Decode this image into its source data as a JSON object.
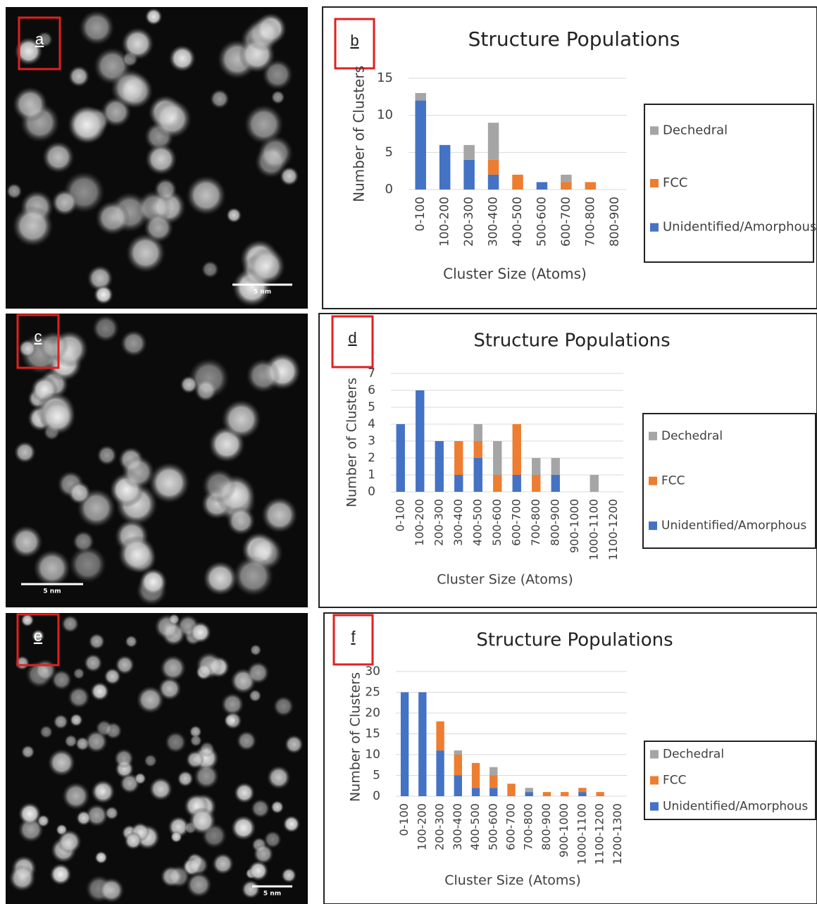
{
  "images": [
    {
      "label": "a",
      "scale_bar": "5 nm"
    },
    {
      "label": "c",
      "scale_bar": "5 nm"
    },
    {
      "label": "e",
      "scale_bar": "5 nm"
    }
  ],
  "chart_data": [
    {
      "type": "bar",
      "stacked": true,
      "panel_label": "b",
      "title": "Structure Populations",
      "x_label": "Cluster Size (Atoms)",
      "y_label": "Number of Clusters",
      "categories": [
        "0-100",
        "100-200",
        "200-300",
        "300-400",
        "400-500",
        "500-600",
        "600-700",
        "700-800",
        "800-900"
      ],
      "series": [
        {
          "name": "Dechedral",
          "color": "#a5a5a5",
          "values": [
            1,
            0,
            2,
            5,
            0,
            0,
            1,
            0,
            0
          ]
        },
        {
          "name": "FCC",
          "color": "#ed7d31",
          "values": [
            0,
            0,
            0,
            2,
            2,
            0,
            1,
            1,
            0
          ]
        },
        {
          "name": "Unidentified/Amorphous",
          "color": "#4472c4",
          "values": [
            12,
            6,
            4,
            2,
            0,
            1,
            0,
            0,
            0
          ]
        }
      ],
      "ylim": [
        0,
        15
      ],
      "yticks": [
        0,
        5,
        10,
        15
      ],
      "grid": true,
      "legend": "right"
    },
    {
      "type": "bar",
      "stacked": true,
      "panel_label": "d",
      "title": "Structure Populations",
      "x_label": "Cluster Size (Atoms)",
      "y_label": "Number of Clusters",
      "categories": [
        "0-100",
        "100-200",
        "200-300",
        "300-400",
        "400-500",
        "500-600",
        "600-700",
        "700-800",
        "800-900",
        "900-1000",
        "1000-1100",
        "1100-1200"
      ],
      "series": [
        {
          "name": "Dechedral",
          "color": "#a5a5a5",
          "values": [
            0,
            0,
            0,
            0,
            1,
            2,
            0,
            1,
            1,
            0,
            1,
            0
          ]
        },
        {
          "name": "FCC",
          "color": "#ed7d31",
          "values": [
            0,
            0,
            0,
            2,
            1,
            1,
            3,
            1,
            0,
            0,
            0,
            0
          ]
        },
        {
          "name": "Unidentified/Amorphous",
          "color": "#4472c4",
          "values": [
            4,
            6,
            3,
            1,
            2,
            0,
            1,
            0,
            1,
            0,
            0,
            0
          ]
        }
      ],
      "ylim": [
        0,
        7
      ],
      "yticks": [
        0,
        1,
        2,
        3,
        4,
        5,
        6,
        7
      ],
      "grid": true,
      "legend": "right"
    },
    {
      "type": "bar",
      "stacked": true,
      "panel_label": "f",
      "title": "Structure Populations",
      "x_label": "Cluster Size (Atoms)",
      "y_label": "Number of Clusters",
      "categories": [
        "0-100",
        "100-200",
        "200-300",
        "300-400",
        "400-500",
        "500-600",
        "600-700",
        "700-800",
        "800-900",
        "900-1000",
        "1000-1100",
        "1100-1200",
        "1200-1300"
      ],
      "series": [
        {
          "name": "Dechedral",
          "color": "#a5a5a5",
          "values": [
            0,
            0,
            0,
            1,
            0,
            2,
            0,
            1,
            0,
            0,
            0,
            0,
            0
          ]
        },
        {
          "name": "FCC",
          "color": "#ed7d31",
          "values": [
            0,
            0,
            7,
            5,
            6,
            3,
            3,
            0,
            1,
            1,
            1,
            1,
            0
          ]
        },
        {
          "name": "Unidentified/Amorphous",
          "color": "#4472c4",
          "values": [
            25,
            25,
            11,
            5,
            2,
            2,
            0,
            1,
            0,
            0,
            1,
            0,
            0
          ]
        }
      ],
      "ylim": [
        0,
        30
      ],
      "yticks": [
        0,
        5,
        10,
        15,
        20,
        25,
        30
      ],
      "grid": true,
      "legend": "right"
    }
  ]
}
